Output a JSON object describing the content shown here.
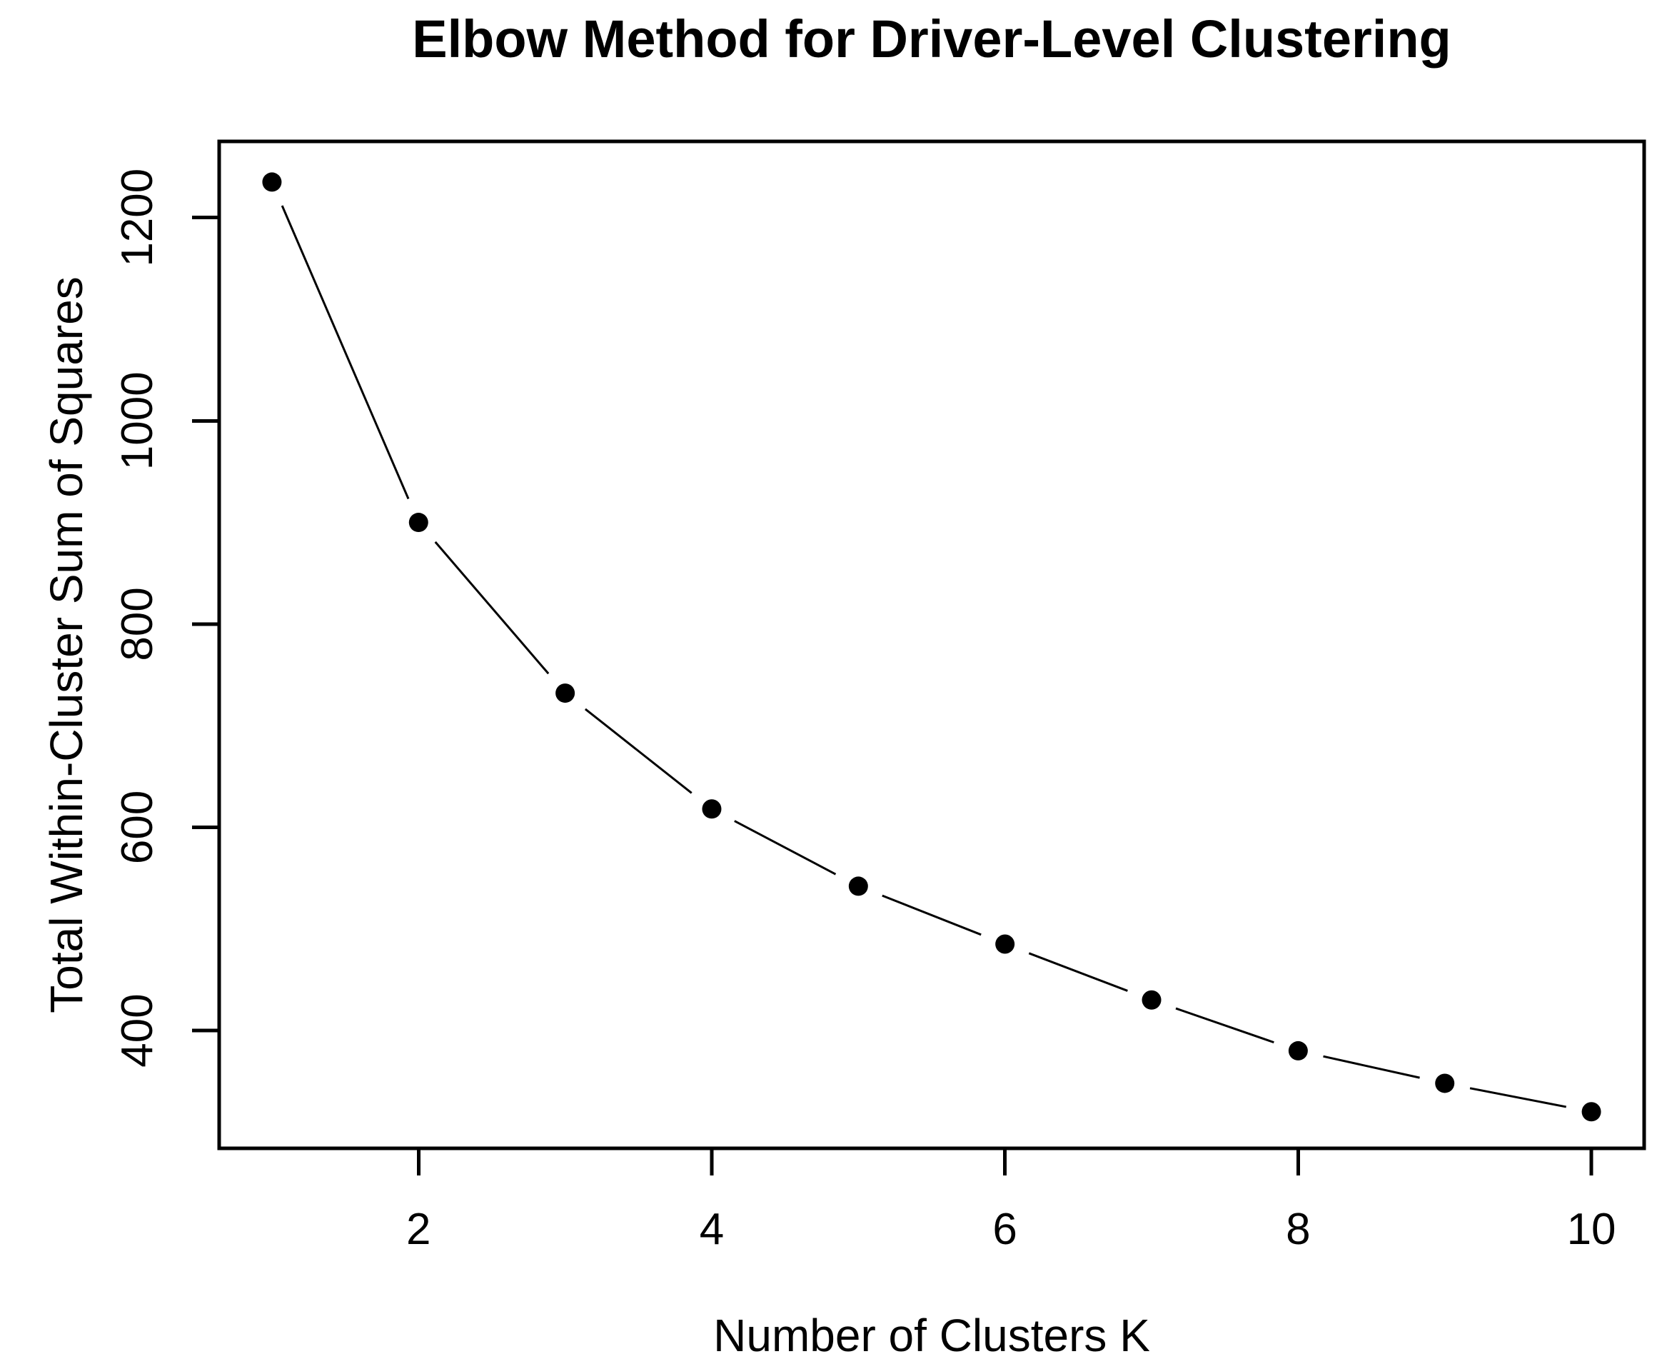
{
  "chart_data": {
    "type": "line",
    "title": "Elbow Method for Driver-Level Clustering",
    "xlabel": "Number of Clusters K",
    "ylabel": "Total Within-Cluster Sum of Squares",
    "x": [
      1,
      2,
      3,
      4,
      5,
      6,
      7,
      8,
      9,
      10
    ],
    "series": [
      {
        "name": "Total within-cluster sum of squares",
        "values": [
          1235,
          900,
          732,
          618,
          542,
          485,
          430,
          380,
          348,
          320
        ]
      }
    ],
    "x_ticks": [
      2,
      4,
      6,
      8,
      10
    ],
    "y_ticks": [
      400,
      600,
      800,
      1000,
      1200
    ],
    "xlim": [
      0.64,
      10.36
    ],
    "ylim": [
      284,
      1275
    ],
    "marker": "filled-circle",
    "plot_style": "points-and-lines-with-gaps",
    "grid": false,
    "legend_position": "none",
    "colors": {
      "foreground": "#000000",
      "background": "#ffffff"
    }
  }
}
